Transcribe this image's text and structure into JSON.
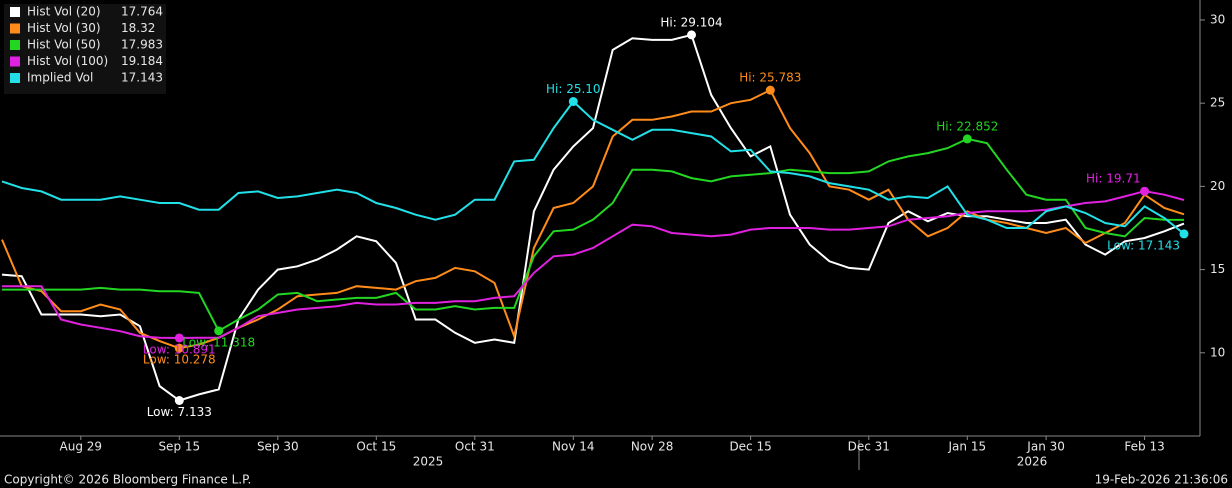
{
  "chart_data": {
    "type": "line",
    "categories": [
      null,
      null,
      null,
      null,
      "Aug 29",
      null,
      null,
      null,
      null,
      "Sep 15",
      null,
      null,
      null,
      null,
      "Sep 30",
      null,
      null,
      null,
      null,
      "Oct 15",
      null,
      null,
      null,
      null,
      "Oct 31",
      null,
      null,
      null,
      null,
      "Nov 14",
      null,
      null,
      null,
      "Nov 28",
      null,
      null,
      null,
      null,
      "Dec 15",
      null,
      null,
      null,
      null,
      null,
      "Dec 31",
      null,
      null,
      null,
      null,
      "Jan 15",
      null,
      null,
      null,
      "Jan 30",
      null,
      null,
      null,
      null,
      "Feb 13",
      null,
      null
    ],
    "year_labels": [
      "2025",
      "2026"
    ],
    "ylim": [
      5,
      31.2
    ],
    "yticks": [
      10,
      15,
      20,
      25,
      30
    ],
    "grid": false,
    "legend": "top-left",
    "series": [
      {
        "name": "Hist Vol (20)",
        "color": "#ffffff",
        "high_label": "Hi: 29.104",
        "low_label": "Low: 7.133",
        "values": [
          14.7,
          14.6,
          12.3,
          12.3,
          12.3,
          12.2,
          12.3,
          11.6,
          8.0,
          7.133,
          7.5,
          7.8,
          12.0,
          13.8,
          15.0,
          15.2,
          15.6,
          16.2,
          17.0,
          16.7,
          15.4,
          12.0,
          12.0,
          11.2,
          10.6,
          10.8,
          10.6,
          18.5,
          21.0,
          22.4,
          23.5,
          28.2,
          28.9,
          28.8,
          28.8,
          29.104,
          25.5,
          23.5,
          21.8,
          22.4,
          18.3,
          16.5,
          15.5,
          15.1,
          15.0,
          17.8,
          18.5,
          17.9,
          18.4,
          18.2,
          18.2,
          18.0,
          17.8,
          17.8,
          18.0,
          16.5,
          15.9,
          16.7,
          16.9,
          17.3,
          17.764
        ]
      },
      {
        "name": "Hist Vol (30)",
        "color": "#ff8c1a",
        "high_label": "Hi: 25.783",
        "low_label": "Low: 10.278",
        "values": [
          16.8,
          14.0,
          13.7,
          12.5,
          12.5,
          12.9,
          12.6,
          11.2,
          10.7,
          10.278,
          10.5,
          10.9,
          11.5,
          12.0,
          12.6,
          13.4,
          13.5,
          13.6,
          14.0,
          13.9,
          13.8,
          14.3,
          14.5,
          15.1,
          14.9,
          14.2,
          11.0,
          16.3,
          18.7,
          19.0,
          20.0,
          23.0,
          24.0,
          24.0,
          24.2,
          24.5,
          24.5,
          25.0,
          25.2,
          25.783,
          23.5,
          22.0,
          20.0,
          19.8,
          19.2,
          19.8,
          18.0,
          17.0,
          17.5,
          18.5,
          18.0,
          17.8,
          17.5,
          17.2,
          17.5,
          16.6,
          17.2,
          17.8,
          19.5,
          18.7,
          18.32
        ]
      },
      {
        "name": "Hist Vol (50)",
        "color": "#22d622",
        "high_label": "Hi: 22.852",
        "low_label": "Low: 11.318",
        "values": [
          13.8,
          13.8,
          13.8,
          13.8,
          13.8,
          13.9,
          13.8,
          13.8,
          13.7,
          13.7,
          13.6,
          11.318,
          12.0,
          12.6,
          13.5,
          13.6,
          13.1,
          13.2,
          13.3,
          13.3,
          13.6,
          12.6,
          12.6,
          12.8,
          12.6,
          12.7,
          12.7,
          15.8,
          17.3,
          17.4,
          18.0,
          19.0,
          21.0,
          21.0,
          20.9,
          20.5,
          20.3,
          20.6,
          20.7,
          20.8,
          21.0,
          20.9,
          20.8,
          20.8,
          20.9,
          21.5,
          21.8,
          22.0,
          22.3,
          22.852,
          22.6,
          21.0,
          19.5,
          19.2,
          19.2,
          17.5,
          17.2,
          17.0,
          18.1,
          18.0,
          17.983
        ]
      },
      {
        "name": "Hist Vol (100)",
        "color": "#e022e0",
        "high_label": "Hi: 19.71",
        "low_label": "Low: 10.891",
        "values": [
          14.0,
          14.0,
          14.0,
          12.0,
          11.7,
          11.5,
          11.3,
          11.0,
          10.9,
          10.891,
          10.9,
          10.9,
          11.5,
          12.2,
          12.4,
          12.6,
          12.7,
          12.8,
          13.0,
          12.9,
          12.9,
          13.0,
          13.0,
          13.1,
          13.1,
          13.3,
          13.4,
          14.8,
          15.8,
          15.9,
          16.3,
          17.0,
          17.7,
          17.6,
          17.2,
          17.1,
          17.0,
          17.1,
          17.4,
          17.5,
          17.5,
          17.5,
          17.4,
          17.4,
          17.5,
          17.6,
          18.0,
          18.1,
          18.2,
          18.4,
          18.5,
          18.5,
          18.5,
          18.6,
          18.8,
          19.0,
          19.1,
          19.4,
          19.71,
          19.5,
          19.184
        ]
      },
      {
        "name": "Implied Vol",
        "color": "#22e0e8",
        "high_label": "Hi: 25.10",
        "low_label": "Low: 17.143",
        "values": [
          20.3,
          19.9,
          19.7,
          19.2,
          19.2,
          19.2,
          19.4,
          19.2,
          19.0,
          19.0,
          18.6,
          18.6,
          19.6,
          19.7,
          19.3,
          19.4,
          19.6,
          19.8,
          19.6,
          19.0,
          18.7,
          18.3,
          18.0,
          18.3,
          19.2,
          19.2,
          21.5,
          21.6,
          23.5,
          25.1,
          24.0,
          23.4,
          22.8,
          23.4,
          23.4,
          23.2,
          23.0,
          22.1,
          22.2,
          20.9,
          20.8,
          20.6,
          20.2,
          20.0,
          19.8,
          19.2,
          19.4,
          19.3,
          20.0,
          18.3,
          18.0,
          17.5,
          17.5,
          18.5,
          18.8,
          18.4,
          17.8,
          17.6,
          18.8,
          18.1,
          17.143
        ]
      }
    ]
  },
  "footer": {
    "copyright": "Copyright© 2026 Bloomberg Finance L.P.",
    "timestamp": "19-Feb-2026 21:36:06"
  }
}
